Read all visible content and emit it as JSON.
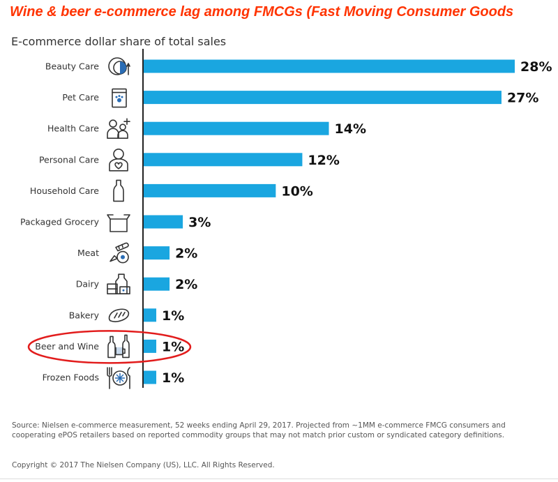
{
  "headline": "Wine & beer e-commerce lag among FMCGs (Fast Moving Consumer Goods",
  "colors": {
    "headline": "#ff3300",
    "bar": "#1aa6e0",
    "highlight_ring": "#e21c1c",
    "axis": "#222222"
  },
  "chart_data": {
    "type": "bar",
    "orientation": "horizontal",
    "title": "E-commerce dollar share of total sales",
    "categories": [
      "Beauty Care",
      "Pet Care",
      "Health Care",
      "Personal Care",
      "Household Care",
      "Packaged Grocery",
      "Meat",
      "Dairy",
      "Bakery",
      "Beer and Wine",
      "Frozen Foods"
    ],
    "values": [
      28,
      27,
      14,
      12,
      10,
      3,
      2,
      2,
      1,
      1,
      1
    ],
    "value_labels": [
      "28%",
      "27%",
      "14%",
      "12%",
      "10%",
      "3%",
      "2%",
      "2%",
      "1%",
      "1%",
      "1%"
    ],
    "icons": [
      "beauty-care-icon",
      "pet-care-icon",
      "health-care-icon",
      "personal-care-icon",
      "household-care-icon",
      "packaged-grocery-icon",
      "meat-icon",
      "dairy-icon",
      "bakery-icon",
      "beer-and-wine-icon",
      "frozen-foods-icon"
    ],
    "xlim": [
      0,
      28
    ],
    "grid": false,
    "highlighted_category": "Beer and Wine"
  },
  "source_note": "Source: Nielsen e-commerce measurement, 52 weeks ending April 29, 2017. Projected from ~1MM e-commerce FMCG consumers and cooperating ePOS retailers based on reported commodity groups that may not match prior custom or syndicated category definitions.",
  "copyright": "Copyright © 2017 The Nielsen Company (US), LLC. All Rights Reserved."
}
